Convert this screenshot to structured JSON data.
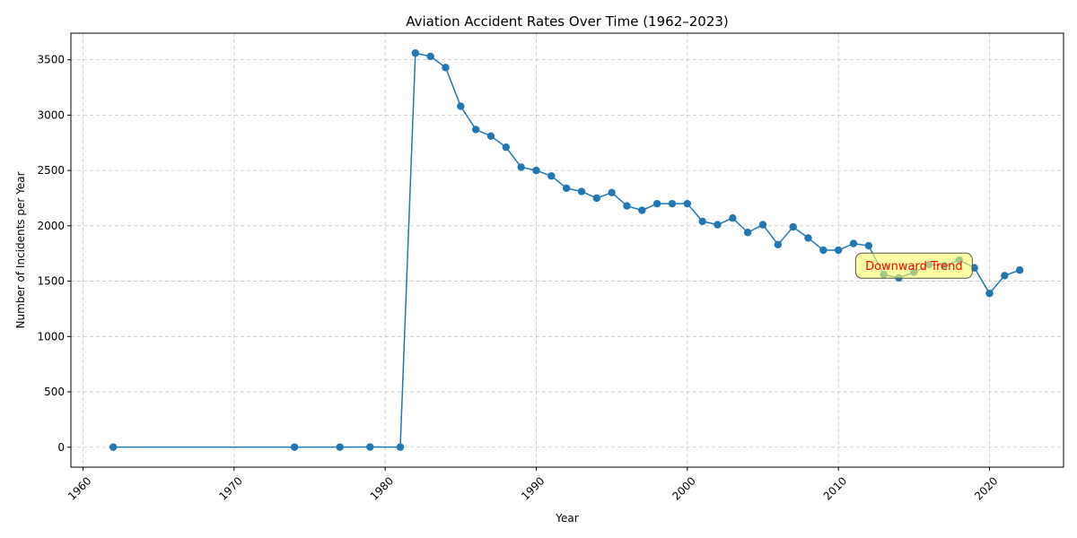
{
  "chart_data": {
    "type": "line",
    "title": "Aviation Accident Rates Over Time (1962–2023)",
    "xlabel": "Year",
    "ylabel": "Number of Incidents per Year",
    "xlim": [
      1959.2,
      2024.9
    ],
    "ylim": [
      -180,
      3740
    ],
    "x_ticks": [
      1960,
      1970,
      1980,
      1990,
      2000,
      2010,
      2020
    ],
    "y_ticks": [
      0,
      500,
      1000,
      1500,
      2000,
      2500,
      3000,
      3500
    ],
    "grid": true,
    "line_color": "#1f77b4",
    "x": [
      1962,
      1974,
      1977,
      1979,
      1981,
      1982,
      1983,
      1984,
      1985,
      1986,
      1987,
      1988,
      1989,
      1990,
      1991,
      1992,
      1993,
      1994,
      1995,
      1996,
      1997,
      1998,
      1999,
      2000,
      2001,
      2002,
      2003,
      2004,
      2005,
      2006,
      2007,
      2008,
      2009,
      2010,
      2011,
      2012,
      2013,
      2014,
      2015,
      2016,
      2017,
      2018,
      2019,
      2020,
      2021,
      2022
    ],
    "y": [
      1,
      1,
      1,
      2,
      1,
      3560,
      3530,
      3430,
      3080,
      2870,
      2810,
      2710,
      2530,
      2500,
      2450,
      2340,
      2310,
      2250,
      2300,
      2180,
      2140,
      2200,
      2200,
      2200,
      2040,
      2010,
      2070,
      1940,
      2010,
      1830,
      1990,
      1890,
      1780,
      1780,
      1840,
      1820,
      1560,
      1530,
      1580,
      1650,
      1640,
      1690,
      1620,
      1390,
      1550,
      1600
    ],
    "annotation": {
      "text": "Downward Trend",
      "x": 2015,
      "y": 1640,
      "text_color": "#ff0000",
      "box_color": "#ffff66"
    }
  }
}
